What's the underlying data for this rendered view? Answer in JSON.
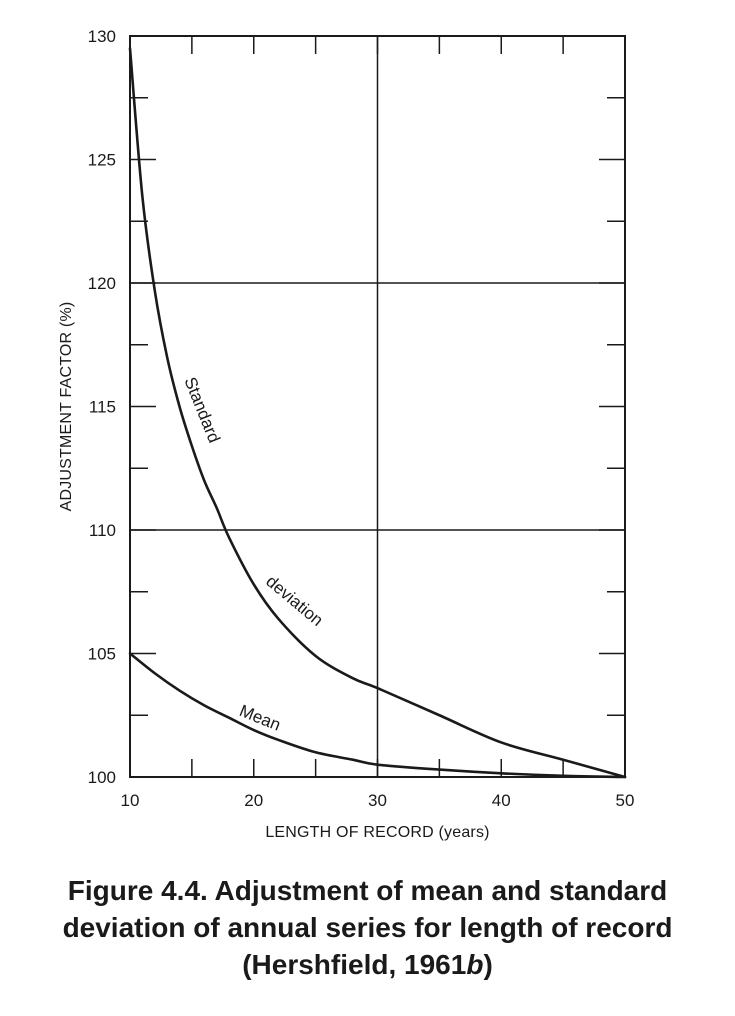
{
  "chart_data": {
    "type": "line",
    "xlabel": "LENGTH OF RECORD (years)",
    "ylabel": "ADJUSTMENT FACTOR (%)",
    "xlim": [
      10,
      50
    ],
    "ylim": [
      100,
      130
    ],
    "x_ticks": [
      10,
      20,
      30,
      40,
      50
    ],
    "y_ticks": [
      100,
      105,
      110,
      115,
      120,
      125,
      130
    ],
    "x_minor_step": 5,
    "y_minor_step": 2.5,
    "grid_x": [
      30
    ],
    "grid_y": [
      110,
      120
    ],
    "series": [
      {
        "name": "Standard deviation",
        "label_words": [
          "Standard",
          "deviation"
        ],
        "x": [
          10,
          11,
          12,
          13,
          14,
          15,
          16,
          17,
          18,
          20,
          22,
          25,
          28,
          30,
          35,
          40,
          45,
          50
        ],
        "values": [
          129.5,
          123.5,
          119.7,
          117.0,
          115.0,
          113.4,
          112.0,
          110.9,
          109.7,
          107.8,
          106.4,
          104.9,
          104.0,
          103.6,
          102.5,
          101.4,
          100.7,
          100.0
        ]
      },
      {
        "name": "Mean",
        "label_words": [
          "Mean"
        ],
        "x": [
          10,
          12,
          14,
          16,
          18,
          20,
          22,
          25,
          28,
          30,
          35,
          40,
          45,
          50
        ],
        "values": [
          105.0,
          104.2,
          103.5,
          102.9,
          102.4,
          101.9,
          101.5,
          101.0,
          100.7,
          100.5,
          100.3,
          100.15,
          100.05,
          100.0
        ]
      }
    ]
  },
  "caption": {
    "line1": "Figure 4.4. Adjustment of mean and standard",
    "line2": "deviation of annual series for length of record",
    "line3_pre": "(Hershfield, 1961",
    "line3_em": "b",
    "line3_post": ")"
  }
}
